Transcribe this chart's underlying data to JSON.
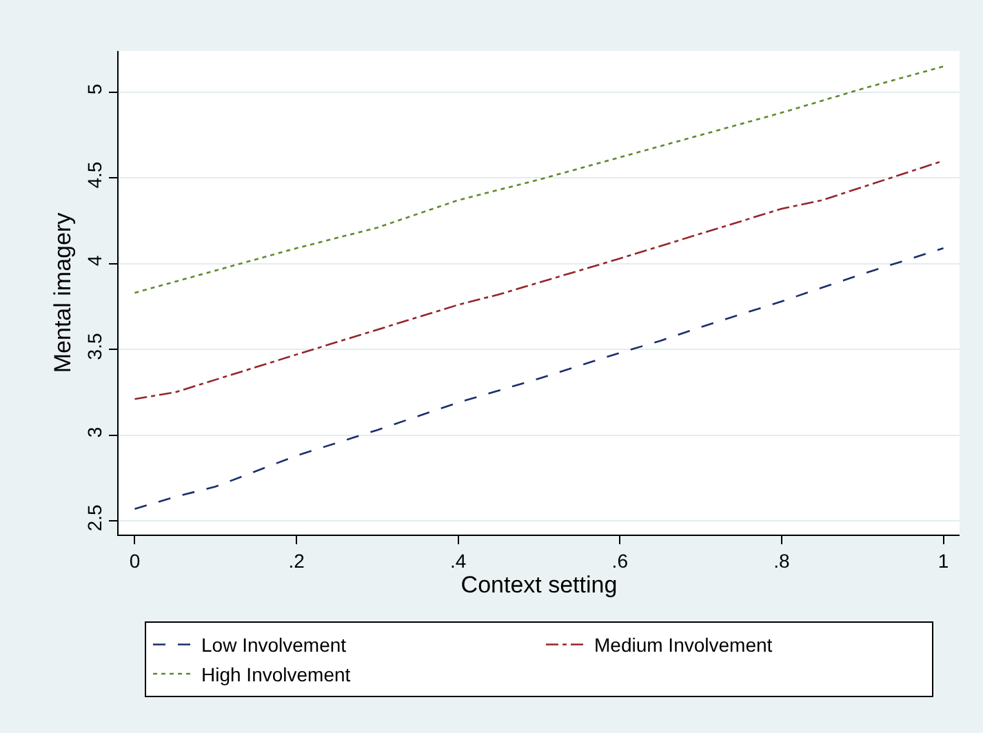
{
  "chart_data": {
    "type": "line",
    "xlabel": "Context setting",
    "ylabel": "Mental imagery",
    "xlim": [
      -0.02,
      1.02
    ],
    "xticks": [
      {
        "value": 0,
        "label": "0"
      },
      {
        "value": 0.2,
        "label": ".2"
      },
      {
        "value": 0.4,
        "label": ".4"
      },
      {
        "value": 0.6,
        "label": ".6"
      },
      {
        "value": 0.8,
        "label": ".8"
      },
      {
        "value": 1,
        "label": "1"
      }
    ],
    "ylim": [
      2.42,
      5.24
    ],
    "yticks": [
      2.5,
      3,
      3.5,
      4,
      4.5,
      5
    ],
    "grid": "y",
    "legend": "bottom",
    "marker": "none",
    "series": [
      {
        "name": "Low Involvement",
        "color": "#1a2e6b",
        "line_style": "dashed",
        "x": [
          0,
          0.05,
          0.1,
          0.2,
          0.3,
          0.35,
          0.4,
          0.5,
          0.6,
          0.65,
          0.7,
          0.8,
          0.9,
          1
        ],
        "values": [
          2.57,
          2.64,
          2.7,
          2.88,
          3.03,
          3.11,
          3.19,
          3.33,
          3.48,
          3.55,
          3.63,
          3.78,
          3.94,
          4.09
        ]
      },
      {
        "name": "Medium Involvement",
        "color": "#93262b",
        "line_style": "dashdot",
        "x": [
          0,
          0.05,
          0.2,
          0.4,
          0.45,
          0.6,
          0.8,
          0.85,
          1
        ],
        "values": [
          3.21,
          3.25,
          3.47,
          3.76,
          3.82,
          4.03,
          4.32,
          4.37,
          4.6
        ]
      },
      {
        "name": "High Involvement",
        "color": "#5f8a2c",
        "line_style": "dotted",
        "x": [
          0,
          0.1,
          0.2,
          0.3,
          0.4,
          0.5,
          0.6,
          0.8,
          0.9,
          1
        ],
        "values": [
          3.83,
          3.96,
          4.09,
          4.21,
          4.37,
          4.49,
          4.62,
          4.88,
          5.02,
          5.15
        ]
      }
    ]
  }
}
